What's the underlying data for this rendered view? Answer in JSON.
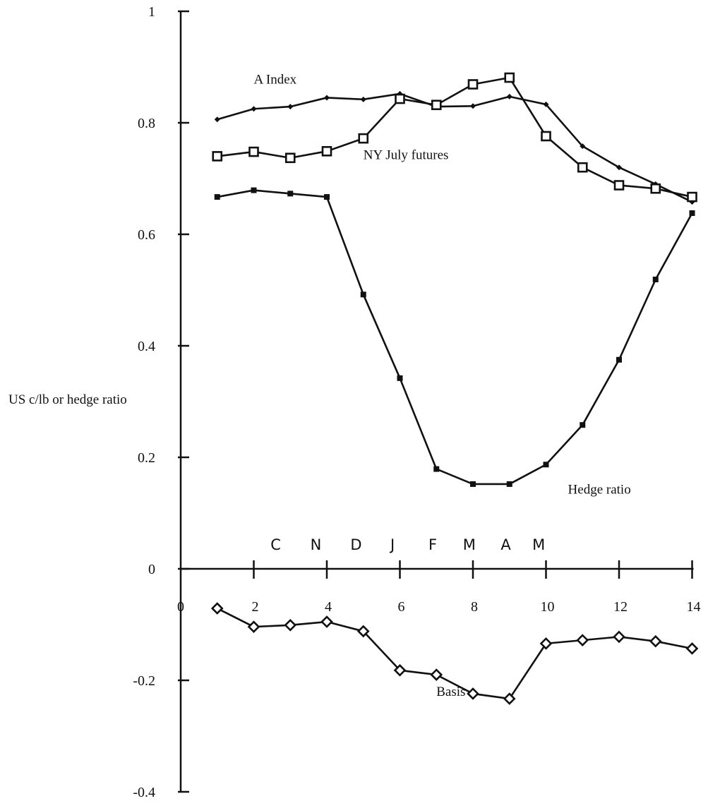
{
  "chart_data": {
    "type": "line",
    "title": "",
    "xlabel": "",
    "ylabel": "US c/lb or hedge ratio",
    "xlim": [
      0,
      14
    ],
    "ylim": [
      -0.4,
      1
    ],
    "x_ticks": [
      0,
      2,
      4,
      6,
      8,
      10,
      12,
      14
    ],
    "y_ticks": [
      -0.4,
      -0.2,
      0,
      0.2,
      0.4,
      0.6,
      0.8,
      1
    ],
    "x_tick_labels": [
      "0",
      "2",
      "4",
      "6",
      "8",
      "10",
      "12",
      "14"
    ],
    "y_tick_labels": [
      "-0.4",
      "-0.2",
      "0",
      "0.2",
      "0.4",
      "0.6",
      "0.8",
      "1"
    ],
    "grid": false,
    "month_labels": [
      {
        "label": "C",
        "x": 2.6
      },
      {
        "label": "N",
        "x": 3.7
      },
      {
        "label": "D",
        "x": 4.8
      },
      {
        "label": "J",
        "x": 5.8
      },
      {
        "label": "F",
        "x": 6.9
      },
      {
        "label": "M",
        "x": 7.9
      },
      {
        "label": "A",
        "x": 8.9
      },
      {
        "label": "M",
        "x": 9.8
      }
    ],
    "series": [
      {
        "name": "A Index",
        "marker": "small-diamond",
        "label_pos": {
          "x": 2.0,
          "y": 0.87
        },
        "x": [
          1,
          2,
          3,
          4,
          5,
          6,
          7,
          8,
          9,
          10,
          11,
          12,
          13,
          14
        ],
        "values": [
          0.806,
          0.825,
          0.829,
          0.845,
          0.842,
          0.852,
          0.829,
          0.83,
          0.847,
          0.833,
          0.758,
          0.72,
          0.69,
          0.658
        ]
      },
      {
        "name": "NY July futures",
        "marker": "open-square",
        "label_pos": {
          "x": 5.0,
          "y": 0.735
        },
        "x": [
          1,
          2,
          3,
          4,
          5,
          6,
          7,
          8,
          9,
          10,
          11,
          12,
          13,
          14
        ],
        "values": [
          0.74,
          0.748,
          0.737,
          0.749,
          0.772,
          0.843,
          0.832,
          0.869,
          0.881,
          0.776,
          0.72,
          0.688,
          0.682,
          0.667
        ]
      },
      {
        "name": "Hedge ratio",
        "marker": "filled-square",
        "label_pos": {
          "x": 10.6,
          "y": 0.135
        },
        "x": [
          1,
          2,
          3,
          4,
          5,
          6,
          7,
          8,
          9,
          10,
          11,
          12,
          13,
          14
        ],
        "values": [
          0.667,
          0.679,
          0.673,
          0.667,
          0.492,
          0.342,
          0.179,
          0.152,
          0.152,
          0.187,
          0.258,
          0.375,
          0.519,
          0.638
        ]
      },
      {
        "name": "Basis",
        "marker": "open-diamond",
        "label_pos": {
          "x": 7.0,
          "y": -0.228
        },
        "x": [
          1,
          2,
          3,
          4,
          5,
          6,
          7,
          8,
          9,
          10,
          11,
          12,
          13,
          14
        ],
        "values": [
          -0.071,
          -0.104,
          -0.101,
          -0.095,
          -0.112,
          -0.182,
          -0.19,
          -0.224,
          -0.233,
          -0.134,
          -0.128,
          -0.122,
          -0.13,
          -0.143
        ]
      }
    ]
  }
}
